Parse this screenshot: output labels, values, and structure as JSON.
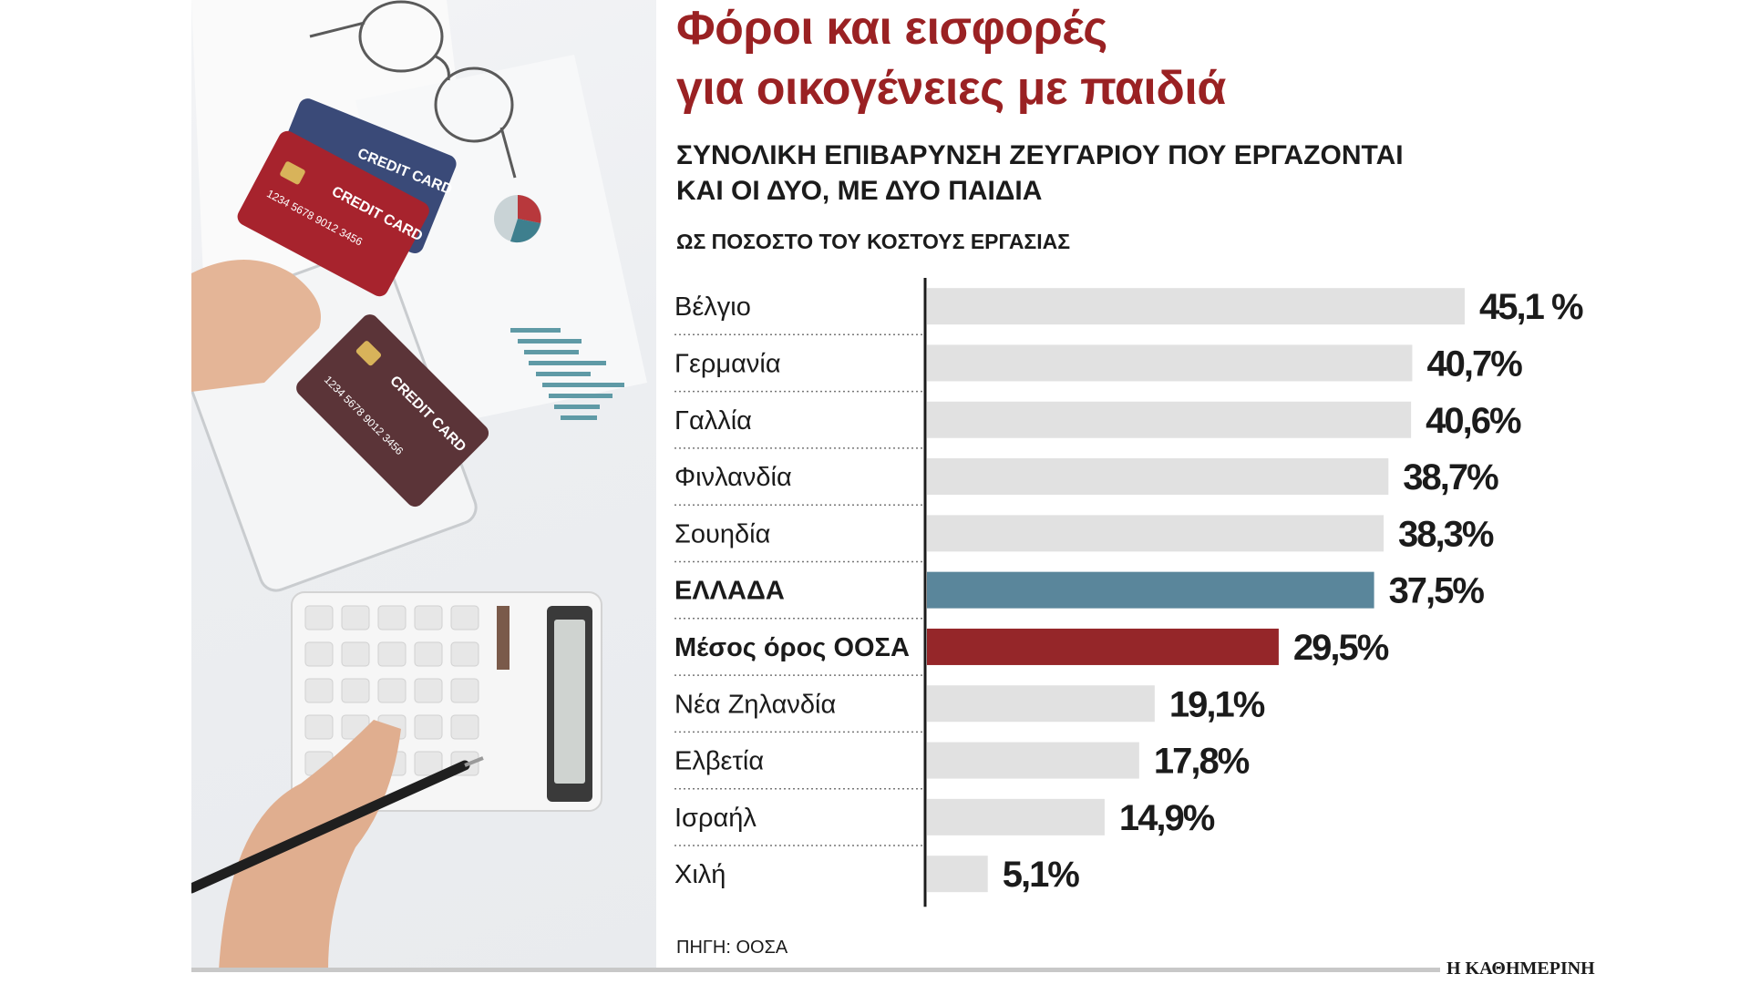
{
  "header": {
    "title_line1": "Φόροι και εισφορές",
    "title_line2": "για οικογένειες με παιδιά",
    "subtitle_line1": "ΣΥΝΟΛΙΚΗ ΕΠΙΒΑΡΥΝΣΗ ΖΕΥΓΑΡΙΟΥ ΠΟΥ ΕΡΓΑΖΟΝΤΑΙ",
    "subtitle_line2": "ΚΑΙ ΟΙ ΔΥΟ, ΜΕ ΔΥΟ ΠΑΙΔΙΑ",
    "unit_label": "ΩΣ ΠΟΣΟΣΤΟ ΤΟΥ ΚΟΣΤΟΥΣ ΕΡΓΑΣΙΑΣ"
  },
  "photo": {
    "card_text": "CREDIT CARD",
    "card_number": "1234 5678 9012 3456"
  },
  "footer": {
    "source": "ΠΗΓΗ: ΟΟΣΑ",
    "brand": "Η ΚΑΘΗΜΕΡΙΝΗ"
  },
  "chart_data": {
    "type": "bar",
    "orientation": "horizontal",
    "categories": [
      "Βέλγιο",
      "Γερμανία",
      "Γαλλία",
      "Φινλανδία",
      "Σουηδία",
      "ΕΛΛΑΔΑ",
      "Μέσος όρος ΟΟΣΑ",
      "Νέα Ζηλανδία",
      "Ελβετία",
      "Ισραήλ",
      "Χιλή"
    ],
    "values": [
      45.1,
      40.7,
      40.6,
      38.7,
      38.3,
      37.5,
      29.5,
      19.1,
      17.8,
      14.9,
      5.1
    ],
    "value_labels": [
      "45,1 %",
      "40,7%",
      "40,6%",
      "38,7%",
      "38,3%",
      "37,5%",
      "29,5%",
      "19,1%",
      "17,8%",
      "14,9%",
      "5,1%"
    ],
    "highlight": {
      "ΕΛΛΑΔΑ": "#5a869b",
      "Μέσος όρος ΟΟΣΑ": "#952629"
    },
    "bold_categories": [
      "ΕΛΛΑΔΑ",
      "Μέσος όρος ΟΟΣΑ"
    ],
    "default_color": "#e1e1e1",
    "xlim": [
      0,
      45.1
    ],
    "grid": false
  }
}
